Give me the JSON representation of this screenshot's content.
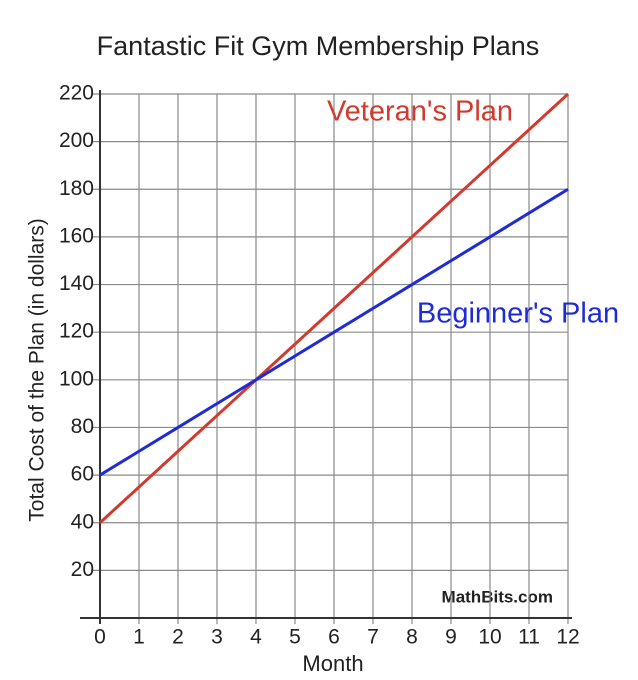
{
  "chart_data": {
    "type": "line",
    "title": "Fantastic Fit Gym Membership Plans",
    "x_label": "Month",
    "y_label": "Total Cost of the Plan (in dollars)",
    "x": [
      0,
      1,
      2,
      3,
      4,
      5,
      6,
      7,
      8,
      9,
      10,
      11,
      12
    ],
    "series": [
      {
        "name": "Veteran's Plan",
        "color": "#d23a2f",
        "values": [
          40,
          55,
          70,
          85,
          100,
          115,
          130,
          145,
          160,
          175,
          190,
          205,
          220
        ]
      },
      {
        "name": "Beginner's Plan",
        "color": "#1f2bd6",
        "values": [
          60,
          70,
          80,
          90,
          100,
          110,
          120,
          130,
          140,
          150,
          160,
          170,
          180
        ]
      }
    ],
    "xlim": [
      0,
      12
    ],
    "xticks": [
      0,
      1,
      2,
      3,
      4,
      5,
      6,
      7,
      8,
      9,
      10,
      11,
      12
    ],
    "ylim": [
      0,
      220
    ],
    "yticks": [
      20,
      40,
      60,
      80,
      100,
      120,
      140,
      160,
      180,
      200,
      220
    ],
    "grid": true,
    "annotation": "MathBits.com"
  }
}
